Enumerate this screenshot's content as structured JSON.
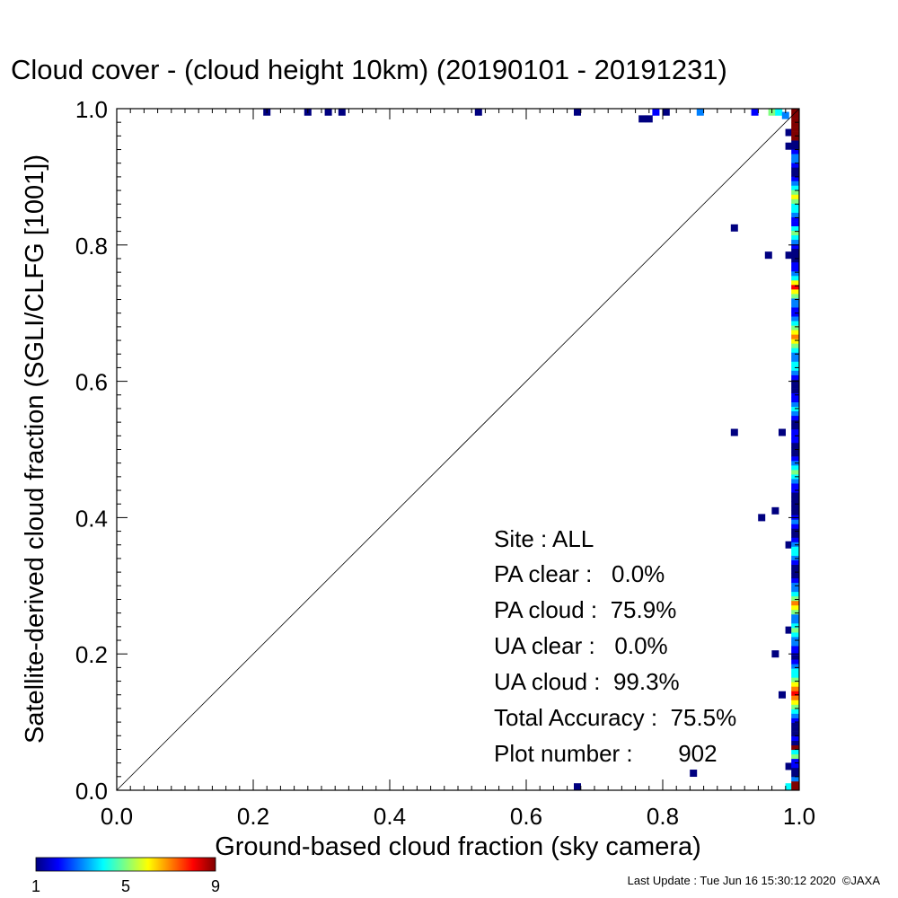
{
  "chart_data": {
    "type": "heatmap",
    "title": "Cloud cover - (cloud height 10km)  (20190101 - 20191231)",
    "xlabel": "Ground-based cloud fraction (sky camera)",
    "ylabel": "Satellite-derived cloud fraction (SGLI/CLFG [1001])",
    "xlim": [
      0.0,
      1.0
    ],
    "ylim": [
      0.0,
      1.0
    ],
    "xticks": [
      "0.0",
      "0.2",
      "0.4",
      "0.6",
      "0.8",
      "1.0"
    ],
    "yticks": [
      "0.0",
      "0.2",
      "0.4",
      "0.6",
      "0.8",
      "1.0"
    ],
    "grid": false,
    "reference_line": "y = x diagonal",
    "colorbar": {
      "min": 1,
      "max": 9,
      "tick_labels": [
        "1",
        "5",
        "9"
      ],
      "colors": [
        "#000080",
        "#0000ff",
        "#0080ff",
        "#00ffff",
        "#80ff80",
        "#ffff00",
        "#ff8000",
        "#ff0000",
        "#800000"
      ]
    },
    "points": [
      {
        "x": 0.22,
        "y": 0.995,
        "count": 1
      },
      {
        "x": 0.28,
        "y": 0.995,
        "count": 1
      },
      {
        "x": 0.31,
        "y": 0.995,
        "count": 1
      },
      {
        "x": 0.33,
        "y": 0.995,
        "count": 1
      },
      {
        "x": 0.53,
        "y": 0.995,
        "count": 1
      },
      {
        "x": 0.675,
        "y": 0.995,
        "count": 1
      },
      {
        "x": 0.77,
        "y": 0.985,
        "count": 1
      },
      {
        "x": 0.78,
        "y": 0.985,
        "count": 1
      },
      {
        "x": 0.79,
        "y": 0.995,
        "count": 2
      },
      {
        "x": 0.805,
        "y": 0.995,
        "count": 1
      },
      {
        "x": 0.855,
        "y": 0.995,
        "count": 3
      },
      {
        "x": 0.935,
        "y": 0.995,
        "count": 2
      },
      {
        "x": 0.96,
        "y": 0.995,
        "count": 5
      },
      {
        "x": 0.97,
        "y": 0.995,
        "count": 4
      },
      {
        "x": 0.98,
        "y": 0.99,
        "count": 3
      },
      {
        "x": 0.985,
        "y": 0.965,
        "count": 1
      },
      {
        "x": 0.985,
        "y": 0.945,
        "count": 1
      },
      {
        "x": 0.905,
        "y": 0.825,
        "count": 1
      },
      {
        "x": 0.955,
        "y": 0.785,
        "count": 1
      },
      {
        "x": 0.985,
        "y": 0.785,
        "count": 1
      },
      {
        "x": 0.905,
        "y": 0.525,
        "count": 1
      },
      {
        "x": 0.975,
        "y": 0.525,
        "count": 1
      },
      {
        "x": 0.965,
        "y": 0.41,
        "count": 1
      },
      {
        "x": 0.945,
        "y": 0.4,
        "count": 1
      },
      {
        "x": 0.985,
        "y": 0.36,
        "count": 1
      },
      {
        "x": 0.985,
        "y": 0.235,
        "count": 1
      },
      {
        "x": 0.965,
        "y": 0.2,
        "count": 1
      },
      {
        "x": 0.975,
        "y": 0.14,
        "count": 1
      },
      {
        "x": 0.845,
        "y": 0.025,
        "count": 1
      },
      {
        "x": 0.985,
        "y": 0.035,
        "count": 1
      },
      {
        "x": 0.675,
        "y": 0.005,
        "count": 1
      },
      {
        "x": 0.985,
        "y": 0.005,
        "count": 4
      }
    ],
    "edge_column": {
      "x": 0.995,
      "y_start": 0.0,
      "y_end": 1.0,
      "counts": [
        9,
        9,
        3,
        1,
        1,
        2,
        2,
        5,
        4,
        9,
        1,
        2,
        1,
        1,
        1,
        2,
        3,
        4,
        5,
        6,
        7,
        8,
        7,
        6,
        5,
        4,
        4,
        3,
        2,
        1,
        2,
        2,
        3,
        3,
        4,
        5,
        4,
        3,
        3,
        5,
        6,
        7,
        5,
        4,
        3,
        3,
        2,
        1,
        1,
        1,
        2,
        3,
        4,
        4,
        3,
        2,
        1,
        1,
        2,
        3,
        2,
        1,
        1,
        1,
        1,
        1,
        2,
        2,
        3,
        4,
        5,
        4,
        3,
        2,
        1,
        1,
        1,
        2,
        2,
        2,
        1,
        1,
        2,
        3,
        4,
        3,
        2,
        2,
        1,
        1,
        1,
        2,
        3,
        4,
        4,
        3,
        3,
        4,
        5,
        6,
        7,
        6,
        5,
        4,
        3,
        2,
        2,
        3,
        3,
        5,
        6,
        8,
        6,
        4,
        3,
        2,
        2,
        1,
        1,
        1,
        2,
        3,
        4,
        5,
        4,
        2,
        2,
        3,
        4,
        4,
        5,
        6,
        5,
        4,
        3,
        2,
        1,
        1,
        2,
        3,
        3,
        2,
        1,
        1,
        9,
        9,
        9,
        9,
        9,
        9,
        9
      ]
    }
  },
  "stats": {
    "site": "Site : ALL",
    "pa_clear": "PA clear :   0.0%",
    "pa_cloud": "PA cloud :  75.9%",
    "ua_clear": "UA clear :   0.0%",
    "ua_cloud": "UA cloud :  99.3%",
    "total_accuracy": "Total Accuracy :  75.5%",
    "plot_number": "Plot number :       902"
  },
  "footer": {
    "last_update": "Last Update : Tue Jun 16 15:30:12 2020  ©JAXA"
  }
}
